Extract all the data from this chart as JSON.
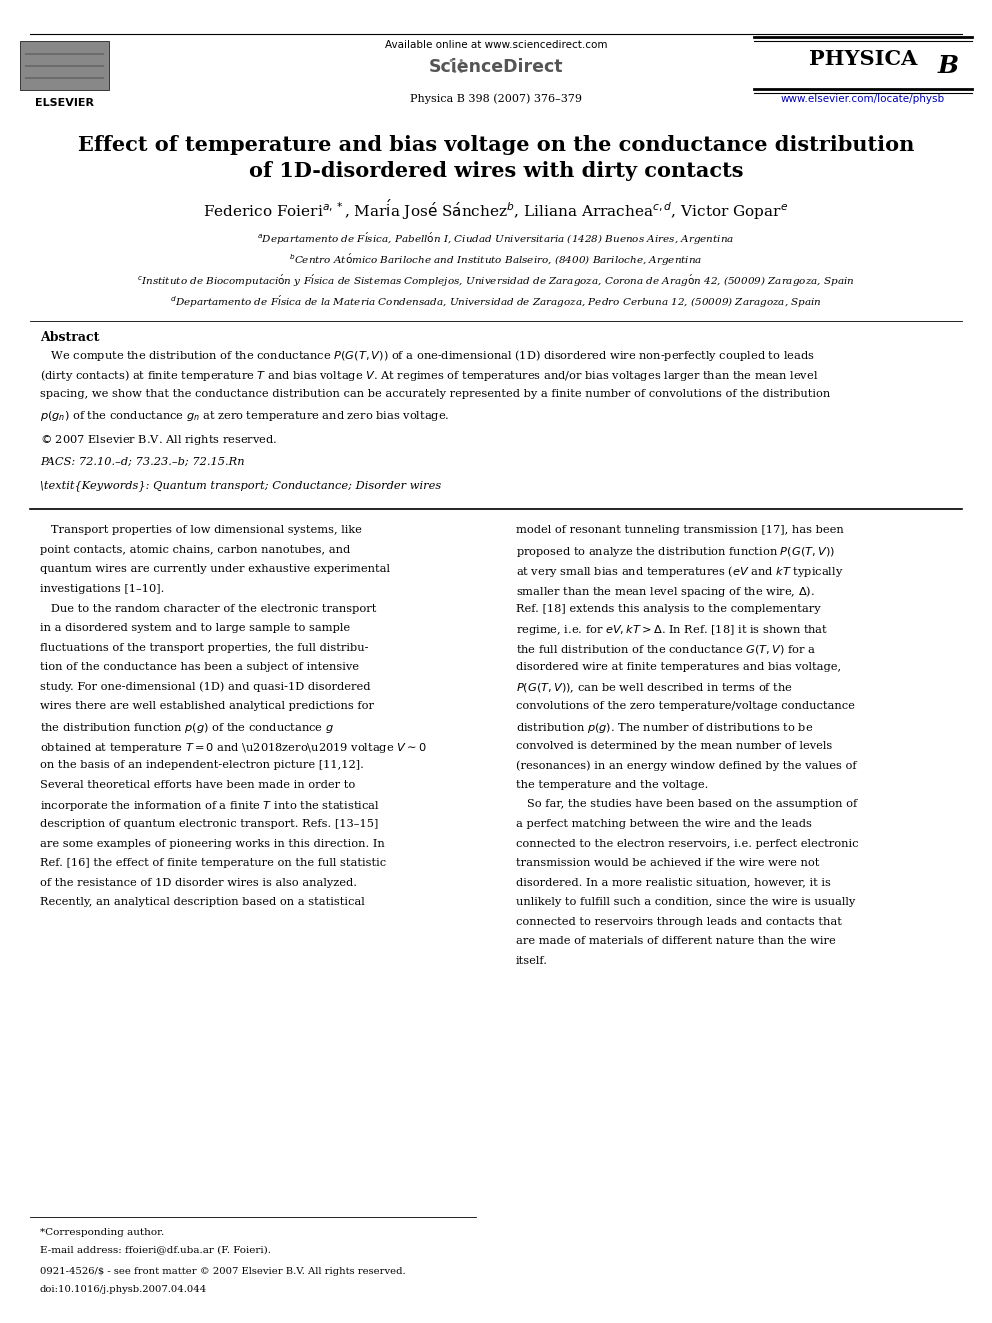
{
  "page_width": 9.92,
  "page_height": 13.23,
  "background_color": "#ffffff",
  "header": {
    "elsevier_text": "ELSEVIER",
    "available_online": "Available online at www.sciencedirect.com",
    "sciencedirect_text": "ScienceDirect",
    "journal_info": "Physica B 398 (2007) 376–379",
    "physica_b": "PHYSICA B",
    "url": "www.elsevier.com/locate/physb"
  },
  "title_line1": "Effect of temperature and bias voltage on the conductance distribution",
  "title_line2": "of 1D-disordered wires with dirty contacts",
  "abstract_title": "Abstract",
  "pacs": "PACS: 72.10.–d; 73.23.–b; 72.15.Rn",
  "keywords": "Keywords: Quantum transport; Conductance; Disorder wires",
  "footnote_star": "*Corresponding author.",
  "footnote_email": "E-mail address: ffoieri@df.uba.ar (F. Foieri).",
  "footnote_bottom1": "0921-4526/$ - see front matter © 2007 Elsevier B.V. All rights reserved.",
  "footnote_bottom2": "doi:10.1016/j.physb.2007.04.044"
}
